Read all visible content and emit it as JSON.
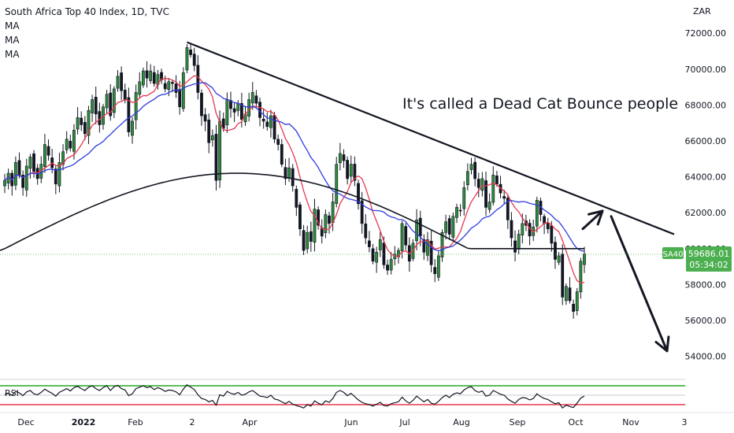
{
  "legend": {
    "title": "South Africa Top 40 Index, 1D, TVC",
    "ma_lines": [
      "MA",
      "MA",
      "MA"
    ]
  },
  "currency": "ZAR",
  "annotation": "It's called a Dead Cat Bounce people",
  "price_badge": {
    "symbol": "SA40",
    "price": "59686.01",
    "countdown": "05:34:02",
    "color": "#4caf50"
  },
  "colors": {
    "up": "#26a69a",
    "down": "#ef5350",
    "candle": "#131722",
    "ma_fast": "#e53950",
    "ma_mid": "#2f3ce0",
    "ma_slow": "#131722",
    "rsi_line": "#131722",
    "rsi_upper": "#26a626",
    "rsi_lower": "#e53950"
  },
  "rsi_label": "RSI",
  "chart_data": {
    "type": "candlestick",
    "title": "South Africa Top 40 Index, 1D, TVC",
    "ylabel": "ZAR",
    "ylim": [
      52800,
      73500
    ],
    "y_ticks": [
      "72000.00",
      "70000.00",
      "68000.00",
      "66000.00",
      "64000.00",
      "62000.00",
      "60000.00",
      "58000.00",
      "56000.00",
      "54000.00"
    ],
    "y_tick_values": [
      72000,
      70000,
      68000,
      66000,
      64000,
      62000,
      60000,
      58000,
      56000,
      54000
    ],
    "x_ticks": [
      "Dec",
      "2022",
      "Feb",
      "2",
      "Apr",
      "Jun",
      "Jul",
      "Aug",
      "Sep",
      "Oct",
      "Nov",
      "3"
    ],
    "last_price": 59686.01,
    "close_series": [
      63800,
      64200,
      63500,
      64800,
      64100,
      63400,
      64600,
      65100,
      64300,
      63900,
      64700,
      65800,
      65200,
      64500,
      63600,
      64800,
      65400,
      66100,
      65600,
      66600,
      67300,
      66900,
      66400,
      67700,
      68300,
      67500,
      66900,
      67900,
      68600,
      67400,
      68900,
      69600,
      68800,
      68300,
      66500,
      67100,
      68700,
      69300,
      69900,
      69500,
      69900,
      69200,
      69700,
      69400,
      68900,
      69300,
      69200,
      68700,
      67900,
      69800,
      71200,
      70800,
      70200,
      68700,
      67400,
      67100,
      65900,
      66300,
      63800,
      67100,
      66700,
      68300,
      67800,
      67600,
      68100,
      67200,
      67500,
      68300,
      68700,
      68100,
      67300,
      67100,
      66800,
      67400,
      66100,
      65800,
      64700,
      63900,
      64500,
      63500,
      62300,
      61100,
      59900,
      60900,
      60400,
      62200,
      61300,
      60700,
      61900,
      61400,
      62600,
      64700,
      65300,
      64900,
      63900,
      64700,
      63800,
      62500,
      61400,
      60600,
      60100,
      59300,
      59800,
      60500,
      59100,
      58800,
      59400,
      59700,
      59900,
      61400,
      60200,
      59300,
      60300,
      61600,
      60700,
      59800,
      60500,
      59100,
      58600,
      59600,
      60900,
      61500,
      60800,
      61800,
      62300,
      62100,
      63400,
      64300,
      64700,
      63900,
      63400,
      63900,
      62300,
      62600,
      64100,
      63600,
      63100,
      62800,
      61600,
      60600,
      59800,
      60800,
      61400,
      61300,
      60700,
      61200,
      62700,
      61900,
      61400,
      61100,
      60300,
      59400,
      59600,
      57300,
      57900,
      57100,
      56500,
      57600,
      59300,
      59700
    ],
    "ma_fast_name": "MA",
    "ma_mid_name": "MA",
    "ma_slow_name": "MA",
    "trendline": {
      "from": {
        "date_index": 50,
        "price": 71500
      },
      "to": {
        "date_index": 185,
        "price": 60800
      }
    },
    "arrows": [
      {
        "from_price": 61100,
        "to_price": 62100,
        "desc": "up"
      },
      {
        "from_price": 61800,
        "to_price": 54300,
        "desc": "down"
      }
    ],
    "rsi": {
      "upper": 70,
      "lower": 30,
      "values": [
        52,
        54,
        50,
        58,
        55,
        49,
        57,
        60,
        53,
        51,
        56,
        63,
        58,
        54,
        48,
        56,
        60,
        64,
        59,
        66,
        69,
        64,
        60,
        67,
        70,
        64,
        60,
        66,
        70,
        60,
        68,
        71,
        64,
        61,
        49,
        53,
        64,
        67,
        70,
        66,
        68,
        62,
        66,
        63,
        58,
        61,
        60,
        57,
        51,
        63,
        72,
        67,
        62,
        51,
        43,
        41,
        36,
        39,
        29,
        51,
        48,
        58,
        54,
        52,
        56,
        50,
        52,
        57,
        60,
        54,
        48,
        47,
        45,
        50,
        42,
        40,
        36,
        32,
        37,
        31,
        28,
        26,
        23,
        30,
        27,
        38,
        33,
        30,
        38,
        35,
        43,
        56,
        60,
        56,
        49,
        54,
        47,
        40,
        35,
        32,
        30,
        27,
        31,
        35,
        28,
        27,
        32,
        34,
        36,
        46,
        38,
        33,
        39,
        48,
        42,
        36,
        41,
        33,
        31,
        37,
        45,
        50,
        45,
        52,
        55,
        53,
        61,
        66,
        68,
        60,
        56,
        59,
        48,
        50,
        60,
        56,
        52,
        50,
        42,
        37,
        33,
        41,
        45,
        44,
        40,
        43,
        53,
        47,
        43,
        41,
        36,
        32,
        34,
        23,
        29,
        26,
        24,
        33,
        44,
        48
      ]
    }
  }
}
